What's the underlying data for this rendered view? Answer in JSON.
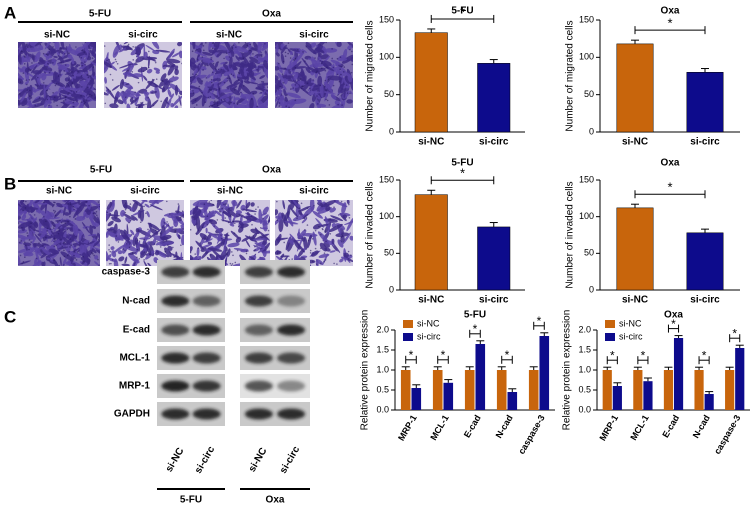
{
  "panel_labels": [
    "A",
    "B",
    "C"
  ],
  "panel_a": {
    "groups": [
      {
        "title": "5-FU",
        "labels": [
          "si-NC",
          "si-circ"
        ]
      },
      {
        "title": "Oxa",
        "labels": [
          "si-NC",
          "si-circ"
        ]
      }
    ]
  },
  "panel_b": {
    "groups": [
      {
        "title": "5-FU",
        "labels": [
          "si-NC",
          "si-circ"
        ]
      },
      {
        "title": "Oxa",
        "labels": [
          "si-NC",
          "si-circ"
        ]
      }
    ]
  },
  "panel_c_blot": {
    "proteins": [
      "caspase-3",
      "N-cad",
      "E-cad",
      "MCL-1",
      "MRP-1",
      "GAPDH"
    ],
    "lanes": [
      "si-NC",
      "si-circ",
      "si-NC",
      "si-circ"
    ],
    "groups": [
      "5-FU",
      "Oxa"
    ]
  },
  "chart_data": [
    {
      "type": "bar",
      "title": "5-FU",
      "y_label": "Number of migrated cells",
      "categories": [
        "si-NC",
        "si-circ"
      ],
      "values": [
        133,
        92
      ],
      "errors": [
        5,
        5
      ],
      "colors": [
        "#c8650c",
        "#0d0b8c"
      ],
      "ylim": [
        0,
        150
      ],
      "yticks": [
        0,
        50,
        100,
        150
      ],
      "significance": "*"
    },
    {
      "type": "bar",
      "title": "Oxa",
      "y_label": "Number of migrated cells",
      "categories": [
        "si-NC",
        "si-circ"
      ],
      "values": [
        118,
        80
      ],
      "errors": [
        5,
        5
      ],
      "colors": [
        "#c8650c",
        "#0d0b8c"
      ],
      "ylim": [
        0,
        150
      ],
      "yticks": [
        0,
        50,
        100,
        150
      ],
      "significance": "*"
    },
    {
      "type": "bar",
      "title": "5-FU",
      "y_label": "Number of invaded cells",
      "categories": [
        "si-NC",
        "si-circ"
      ],
      "values": [
        130,
        86
      ],
      "errors": [
        6,
        6
      ],
      "colors": [
        "#c8650c",
        "#0d0b8c"
      ],
      "ylim": [
        0,
        150
      ],
      "yticks": [
        0,
        50,
        100,
        150
      ],
      "significance": "*"
    },
    {
      "type": "bar",
      "title": "Oxa",
      "y_label": "Number of invaded cells",
      "categories": [
        "si-NC",
        "si-circ"
      ],
      "values": [
        112,
        78
      ],
      "errors": [
        5,
        5
      ],
      "colors": [
        "#c8650c",
        "#0d0b8c"
      ],
      "ylim": [
        0,
        150
      ],
      "yticks": [
        0,
        50,
        100,
        150
      ],
      "significance": "*"
    },
    {
      "type": "bar",
      "title": "5-FU",
      "y_label": "Relative protein expression",
      "categories": [
        "MRP-1",
        "MCL-1",
        "E-cad",
        "N-cad",
        "caspase-3"
      ],
      "series": [
        {
          "name": "si-NC",
          "color": "#c8650c",
          "values": [
            1.0,
            1.0,
            1.0,
            1.0,
            1.0
          ],
          "errors": [
            0.08,
            0.08,
            0.08,
            0.08,
            0.08
          ]
        },
        {
          "name": "si-circ",
          "color": "#0d0b8c",
          "values": [
            0.55,
            0.68,
            1.65,
            0.45,
            1.85
          ],
          "errors": [
            0.08,
            0.08,
            0.08,
            0.08,
            0.08
          ]
        }
      ],
      "ylim": [
        0,
        2.0
      ],
      "yticks": [
        {
          "value": 0,
          "label": "0.0"
        },
        0.5,
        {
          "value": 1,
          "label": "1.0"
        },
        1.5,
        {
          "value": 2,
          "label": "2.0"
        }
      ],
      "significance": [
        "*",
        "*",
        "*",
        "*",
        "*"
      ],
      "legend": "top-left"
    },
    {
      "type": "bar",
      "title": "Oxa",
      "y_label": "Relative protein expression",
      "categories": [
        "MRP-1",
        "MCL-1",
        "E-cad",
        "N-cad",
        "caspase-3"
      ],
      "series": [
        {
          "name": "si-NC",
          "color": "#c8650c",
          "values": [
            1.0,
            1.0,
            1.0,
            1.0,
            1.0
          ],
          "errors": [
            0.07,
            0.07,
            0.07,
            0.07,
            0.07
          ]
        },
        {
          "name": "si-circ",
          "color": "#0d0b8c",
          "values": [
            0.6,
            0.72,
            1.8,
            0.4,
            1.55
          ],
          "errors": [
            0.08,
            0.08,
            0.06,
            0.06,
            0.07
          ]
        }
      ],
      "ylim": [
        0,
        2.0
      ],
      "yticks": [
        {
          "value": 0,
          "label": "0.0"
        },
        0.5,
        {
          "value": 1,
          "label": "1.0"
        },
        1.5,
        {
          "value": 2,
          "label": "2.0"
        }
      ],
      "significance": [
        "*",
        "*",
        "*",
        "*",
        "*"
      ],
      "legend": "top-left"
    }
  ]
}
